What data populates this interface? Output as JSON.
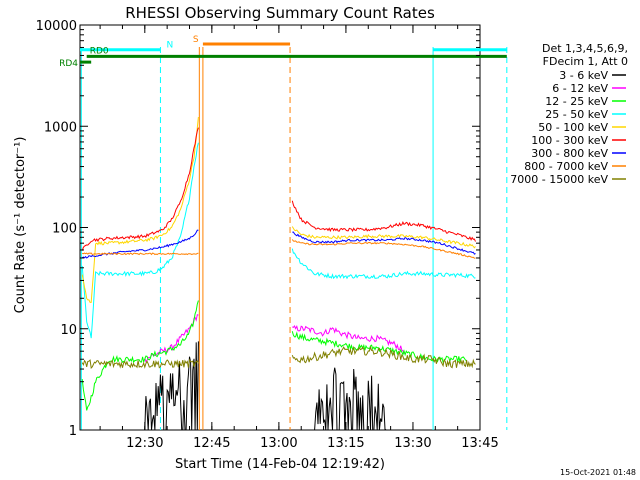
{
  "chart_data": {
    "type": "line",
    "title": "RHESSI Observing Summary Count Rates",
    "xlabel": "Start Time (14-Feb-04 12:19:42)",
    "ylabel": "Count Rate (s⁻¹ detector⁻¹)",
    "timestamp": "15-Oct-2021 01:48",
    "y_scale": "log",
    "ylim": [
      1,
      10000
    ],
    "xlim_minutes": [
      5.5,
      95
    ],
    "x_ticks": [
      {
        "min": 20,
        "label": "12:30"
      },
      {
        "min": 35,
        "label": "12:45"
      },
      {
        "min": 50,
        "label": "13:00"
      },
      {
        "min": 65,
        "label": "13:15"
      },
      {
        "min": 80,
        "label": "13:30"
      },
      {
        "min": 95,
        "label": "13:45"
      }
    ],
    "y_ticks": [
      {
        "v": 1,
        "label": "1"
      },
      {
        "v": 10,
        "label": "10"
      },
      {
        "v": 100,
        "label": "100"
      },
      {
        "v": 1000,
        "label": "1000"
      },
      {
        "v": 10000,
        "label": "10000"
      }
    ],
    "legend": {
      "placement": "right",
      "header": [
        "Det 1,3,4,5,6,9,",
        "FDecim 1, Att 0"
      ],
      "entries": [
        {
          "label": "3 - 6 keV",
          "color": "#000000"
        },
        {
          "label": "6 - 12 keV",
          "color": "#ff00ff"
        },
        {
          "label": "12 - 25 keV",
          "color": "#00ff00"
        },
        {
          "label": "25 - 50 keV",
          "color": "#00ffff"
        },
        {
          "label": "50 - 100 keV",
          "color": "#ffd700"
        },
        {
          "label": "100 - 300 keV",
          "color": "#ff0000"
        },
        {
          "label": "300 - 800 keV",
          "color": "#0000ff"
        },
        {
          "label": "800 - 7000 keV",
          "color": "#ff8000"
        },
        {
          "label": "7000 - 15000 keV",
          "color": "#808000"
        }
      ]
    },
    "flags": [
      {
        "label": "N",
        "color": "#00ffff",
        "y": 5700,
        "segments": [
          [
            5.5,
            23.5
          ],
          [
            84.5,
            101
          ]
        ]
      },
      {
        "label": "S",
        "color": "#ff8000",
        "y": 6500,
        "segments": [
          [
            33,
            52.5
          ]
        ]
      },
      {
        "label": "RD0",
        "color": "#008000",
        "y": 4900,
        "segments": [
          [
            7,
            101
          ]
        ]
      },
      {
        "label": "RD4",
        "color": "#008000",
        "y": 4300,
        "segments": [
          [
            5.5,
            8
          ]
        ]
      }
    ],
    "vlines": [
      {
        "min": 5.8,
        "color": "#00ffff",
        "style": "solid"
      },
      {
        "min": 23.5,
        "color": "#00ffff",
        "style": "dashed"
      },
      {
        "min": 84.5,
        "color": "#00ffff",
        "style": "solid"
      },
      {
        "min": 101,
        "color": "#00ffff",
        "style": "dashed"
      },
      {
        "min": 32.2,
        "color": "#ff8000",
        "style": "solid"
      },
      {
        "min": 33,
        "color": "#ff8000",
        "style": "solid"
      },
      {
        "min": 52.5,
        "color": "#ff8000",
        "style": "dashed"
      }
    ],
    "series": [
      {
        "name": "3 - 6 keV",
        "color": "#000000",
        "noise": 0.45,
        "style": "jagged",
        "segments": [
          [
            [
              20,
              1
            ],
            [
              22,
              1.5
            ],
            [
              24,
              2
            ],
            [
              26,
              2
            ],
            [
              28,
              2.5
            ],
            [
              30,
              3
            ],
            [
              32,
              4
            ]
          ],
          [
            [
              58,
              1
            ],
            [
              60,
              1.5
            ],
            [
              62,
              2
            ],
            [
              64,
              2
            ],
            [
              66,
              2
            ],
            [
              68,
              2
            ],
            [
              70,
              2
            ],
            [
              72,
              1.5
            ],
            [
              74,
              1
            ]
          ]
        ]
      },
      {
        "name": "6 - 12 keV",
        "color": "#ff00ff",
        "noise": 0.06,
        "segments": [
          [
            [
              20,
              5
            ],
            [
              22,
              5.5
            ],
            [
              24,
              6
            ],
            [
              26,
              6.5
            ],
            [
              28,
              8
            ],
            [
              30,
              10
            ],
            [
              31,
              12
            ],
            [
              32,
              14
            ]
          ],
          [
            [
              53,
              10
            ],
            [
              56,
              10
            ],
            [
              60,
              9
            ],
            [
              62,
              10
            ],
            [
              64,
              9
            ],
            [
              68,
              8
            ],
            [
              72,
              8
            ],
            [
              76,
              7
            ],
            [
              78,
              6
            ]
          ]
        ]
      },
      {
        "name": "12 - 25 keV",
        "color": "#00ff00",
        "noise": 0.06,
        "segments": [
          [
            [
              6,
              3
            ],
            [
              7,
              1.5
            ],
            [
              9,
              3
            ],
            [
              12,
              5
            ],
            [
              16,
              5
            ],
            [
              20,
              5
            ],
            [
              22,
              5.5
            ],
            [
              25,
              6
            ],
            [
              28,
              7
            ],
            [
              30,
              9
            ],
            [
              31,
              12
            ],
            [
              32,
              20
            ]
          ],
          [
            [
              53,
              9
            ],
            [
              56,
              8
            ],
            [
              60,
              7.5
            ],
            [
              64,
              7
            ],
            [
              68,
              6.5
            ],
            [
              72,
              6.5
            ],
            [
              76,
              6
            ],
            [
              80,
              5.5
            ],
            [
              84,
              5
            ],
            [
              88,
              5
            ],
            [
              92,
              5
            ]
          ]
        ]
      },
      {
        "name": "25 - 50 keV",
        "color": "#00ffff",
        "noise": 0.04,
        "segments": [
          [
            [
              6,
              40
            ],
            [
              7,
              12
            ],
            [
              8,
              8
            ],
            [
              9,
              35
            ],
            [
              12,
              35
            ],
            [
              16,
              35
            ],
            [
              20,
              35
            ],
            [
              22,
              36
            ],
            [
              24,
              40
            ],
            [
              26,
              50
            ],
            [
              28,
              80
            ],
            [
              30,
              200
            ],
            [
              31,
              400
            ],
            [
              32,
              700
            ]
          ],
          [
            [
              53,
              60
            ],
            [
              55,
              45
            ],
            [
              58,
              35
            ],
            [
              62,
              33
            ],
            [
              66,
              33
            ],
            [
              70,
              33
            ],
            [
              74,
              33
            ],
            [
              78,
              35
            ],
            [
              82,
              35
            ],
            [
              86,
              34
            ],
            [
              90,
              34
            ],
            [
              94,
              33
            ]
          ]
        ]
      },
      {
        "name": "50 - 100 keV",
        "color": "#ffd700",
        "noise": 0.03,
        "segments": [
          [
            [
              6,
              35
            ],
            [
              7,
              20
            ],
            [
              8,
              18
            ],
            [
              9,
              70
            ],
            [
              12,
              70
            ],
            [
              16,
              72
            ],
            [
              20,
              75
            ],
            [
              22,
              78
            ],
            [
              24,
              85
            ],
            [
              26,
              100
            ],
            [
              28,
              150
            ],
            [
              30,
              300
            ],
            [
              31,
              500
            ],
            [
              32,
              1200
            ]
          ],
          [
            [
              53,
              100
            ],
            [
              55,
              85
            ],
            [
              58,
              80
            ],
            [
              62,
              80
            ],
            [
              66,
              80
            ],
            [
              70,
              82
            ],
            [
              74,
              82
            ],
            [
              78,
              82
            ],
            [
              82,
              80
            ],
            [
              86,
              75
            ],
            [
              90,
              70
            ],
            [
              94,
              65
            ]
          ]
        ]
      },
      {
        "name": "100 - 300 keV",
        "color": "#ff0000",
        "noise": 0.03,
        "segments": [
          [
            [
              6,
              60
            ],
            [
              8,
              75
            ],
            [
              12,
              78
            ],
            [
              16,
              80
            ],
            [
              20,
              82
            ],
            [
              22,
              88
            ],
            [
              24,
              95
            ],
            [
              26,
              120
            ],
            [
              28,
              180
            ],
            [
              30,
              350
            ],
            [
              31,
              600
            ],
            [
              32,
              1000
            ]
          ],
          [
            [
              53,
              180
            ],
            [
              55,
              120
            ],
            [
              58,
              100
            ],
            [
              62,
              95
            ],
            [
              66,
              95
            ],
            [
              70,
              95
            ],
            [
              74,
              100
            ],
            [
              78,
              110
            ],
            [
              82,
              105
            ],
            [
              86,
              95
            ],
            [
              90,
              85
            ],
            [
              94,
              75
            ]
          ]
        ]
      },
      {
        "name": "300 - 800 keV",
        "color": "#0000ff",
        "noise": 0.02,
        "segments": [
          [
            [
              6,
              50
            ],
            [
              8,
              52
            ],
            [
              12,
              55
            ],
            [
              16,
              58
            ],
            [
              20,
              60
            ],
            [
              22,
              62
            ],
            [
              24,
              64
            ],
            [
              26,
              68
            ],
            [
              28,
              72
            ],
            [
              30,
              78
            ],
            [
              31,
              85
            ],
            [
              32,
              95
            ]
          ],
          [
            [
              53,
              90
            ],
            [
              55,
              80
            ],
            [
              58,
              72
            ],
            [
              62,
              72
            ],
            [
              66,
              75
            ],
            [
              70,
              75
            ],
            [
              74,
              75
            ],
            [
              78,
              78
            ],
            [
              82,
              75
            ],
            [
              86,
              70
            ],
            [
              90,
              62
            ],
            [
              94,
              55
            ]
          ]
        ]
      },
      {
        "name": "800 - 7000 keV",
        "color": "#ff8000",
        "noise": 0.015,
        "segments": [
          [
            [
              6,
              55
            ],
            [
              8,
              55
            ],
            [
              12,
              55
            ],
            [
              16,
              55
            ],
            [
              20,
              55
            ],
            [
              24,
              55
            ],
            [
              28,
              55
            ],
            [
              32,
              55
            ]
          ],
          [
            [
              53,
              75
            ],
            [
              55,
              70
            ],
            [
              58,
              68
            ],
            [
              62,
              68
            ],
            [
              66,
              70
            ],
            [
              70,
              70
            ],
            [
              74,
              70
            ],
            [
              78,
              68
            ],
            [
              82,
              65
            ],
            [
              86,
              60
            ],
            [
              90,
              55
            ],
            [
              94,
              50
            ]
          ]
        ]
      },
      {
        "name": "7000 - 15000 keV",
        "color": "#808000",
        "noise": 0.08,
        "segments": [
          [
            [
              6,
              4.5
            ],
            [
              8,
              4.5
            ],
            [
              10,
              4.5
            ],
            [
              14,
              4.5
            ],
            [
              18,
              4.5
            ],
            [
              22,
              4.5
            ],
            [
              26,
              4.5
            ],
            [
              30,
              4.5
            ],
            [
              32,
              4.5
            ]
          ],
          [
            [
              53,
              5
            ],
            [
              56,
              5
            ],
            [
              60,
              5.5
            ],
            [
              64,
              6
            ],
            [
              68,
              6
            ],
            [
              72,
              6
            ],
            [
              76,
              5.5
            ],
            [
              80,
              5
            ],
            [
              84,
              5
            ],
            [
              88,
              4.5
            ],
            [
              92,
              4.5
            ],
            [
              94,
              4.5
            ]
          ]
        ]
      }
    ]
  }
}
